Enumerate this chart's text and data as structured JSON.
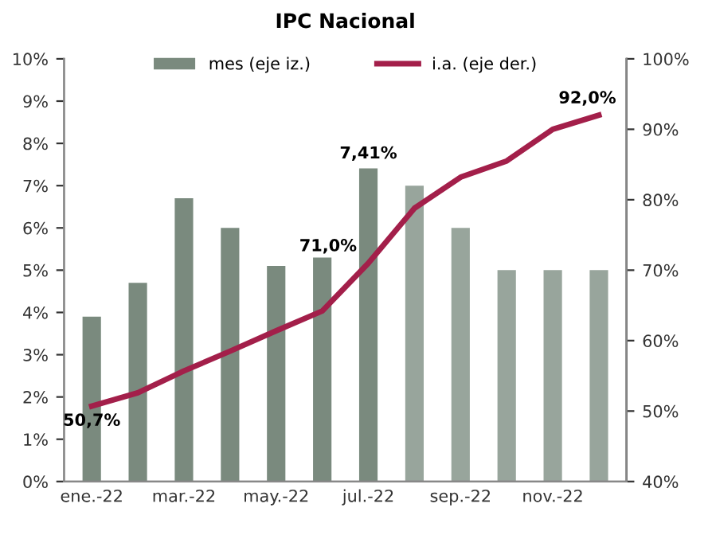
{
  "chart_data": {
    "type": "bar",
    "title": "IPC Nacional",
    "categories": [
      "ene.-22",
      null,
      "mar.-22",
      null,
      "may.-22",
      null,
      "jul.-22",
      null,
      "sep.-22",
      null,
      "nov.-22",
      null
    ],
    "series": [
      {
        "name": "mes (eje iz.)",
        "color": "#7a8a7e",
        "colors": [
          "#7a8a7e",
          "#7a8a7e",
          "#7a8a7e",
          "#7a8a7e",
          "#7a8a7e",
          "#7a8a7e",
          "#7a8a7e",
          "#98a59c",
          "#98a59c",
          "#98a59c",
          "#98a59c",
          "#98a59c"
        ],
        "values": [
          3.9,
          4.7,
          6.7,
          6.0,
          5.1,
          5.3,
          7.41,
          7.0,
          6.0,
          5.0,
          5.0,
          5.0
        ],
        "value_labels": [
          null,
          null,
          null,
          null,
          null,
          null,
          "7,41%",
          null,
          null,
          null,
          null,
          null
        ]
      },
      {
        "name": "i.a. (eje der.)",
        "type": "line",
        "axis": "y2",
        "color": "#a31f4a",
        "values": [
          50.7,
          52.6,
          55.7,
          58.5,
          61.4,
          64.2,
          71.0,
          78.8,
          83.2,
          85.5,
          90.0,
          92.0
        ],
        "value_labels": [
          "50,7%",
          null,
          null,
          null,
          null,
          null,
          "71,0%",
          null,
          null,
          null,
          null,
          "92,0%"
        ]
      }
    ],
    "ylim": [
      0,
      10
    ],
    "yticks": [
      {
        "value": 0,
        "label": "0%"
      },
      {
        "value": 1,
        "label": "1%"
      },
      {
        "value": 2,
        "label": "2%"
      },
      {
        "value": 3,
        "label": "3%"
      },
      {
        "value": 4,
        "label": "4%"
      },
      {
        "value": 5,
        "label": "5%"
      },
      {
        "value": 6,
        "label": "6%"
      },
      {
        "value": 7,
        "label": "7%"
      },
      {
        "value": 8,
        "label": "8%"
      },
      {
        "value": 9,
        "label": "9%"
      },
      {
        "value": 10,
        "label": "10%"
      }
    ],
    "y2lim": [
      40,
      100
    ],
    "y2ticks": [
      {
        "value": 40,
        "label": "40%"
      },
      {
        "value": 50,
        "label": "50%"
      },
      {
        "value": 60,
        "label": "60%"
      },
      {
        "value": 70,
        "label": "70%"
      },
      {
        "value": 80,
        "label": "80%"
      },
      {
        "value": 90,
        "label": "90%"
      },
      {
        "value": 100,
        "label": "100%"
      }
    ],
    "grid": false,
    "legend": "top",
    "marker": "none",
    "line_style": "solid"
  }
}
